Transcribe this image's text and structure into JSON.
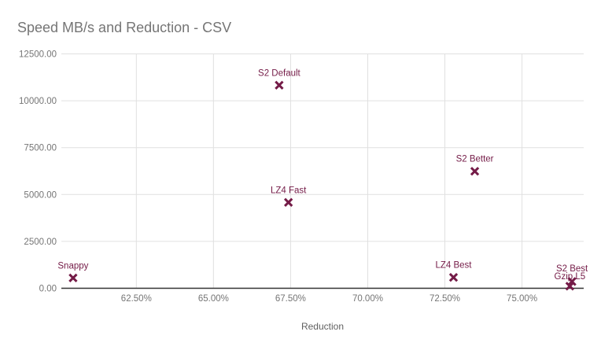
{
  "colors": {
    "series": "#741b47",
    "title_text": "#757575",
    "tick_text": "#757575",
    "axis_title_text": "#616161",
    "gridline": "#e0e0e0",
    "axis_line": "#333333",
    "background": "#ffffff"
  },
  "chart_data": {
    "type": "scatter",
    "title": "Speed MB/s and Reduction - CSV",
    "xlabel": "Reduction",
    "ylabel": "",
    "xlim": [
      60.07,
      77.0
    ],
    "ylim": [
      0,
      12500
    ],
    "grid": true,
    "legend": "none",
    "marker": "x",
    "x_ticks": [
      {
        "v": 62.5,
        "label": "62.50%"
      },
      {
        "v": 65.0,
        "label": "65.00%"
      },
      {
        "v": 67.5,
        "label": "67.50%"
      },
      {
        "v": 70.0,
        "label": "70.00%"
      },
      {
        "v": 72.5,
        "label": "72.50%"
      },
      {
        "v": 75.0,
        "label": "75.00%"
      }
    ],
    "y_ticks": [
      {
        "v": 0,
        "label": "0.00"
      },
      {
        "v": 2500,
        "label": "2500.00"
      },
      {
        "v": 5000,
        "label": "5000.00"
      },
      {
        "v": 7500,
        "label": "7500.00"
      },
      {
        "v": 10000,
        "label": "10000.00"
      },
      {
        "v": 12500,
        "label": "12500.00"
      }
    ],
    "points": [
      {
        "label": "Snappy",
        "x": 60.45,
        "y": 550,
        "dy": -16
      },
      {
        "label": "S2 Default",
        "x": 67.13,
        "y": 10830,
        "dy": -16
      },
      {
        "label": "LZ4 Fast",
        "x": 67.43,
        "y": 4580,
        "dy": -16
      },
      {
        "label": "S2 Better",
        "x": 73.47,
        "y": 6240,
        "dy": -16
      },
      {
        "label": "LZ4 Best",
        "x": 72.78,
        "y": 580,
        "dy": -16
      },
      {
        "label": "S2 Best",
        "x": 76.62,
        "y": 360,
        "dy": -17
      },
      {
        "label": "Gzip L5",
        "x": 76.55,
        "y": 110,
        "dy": -13
      }
    ]
  }
}
